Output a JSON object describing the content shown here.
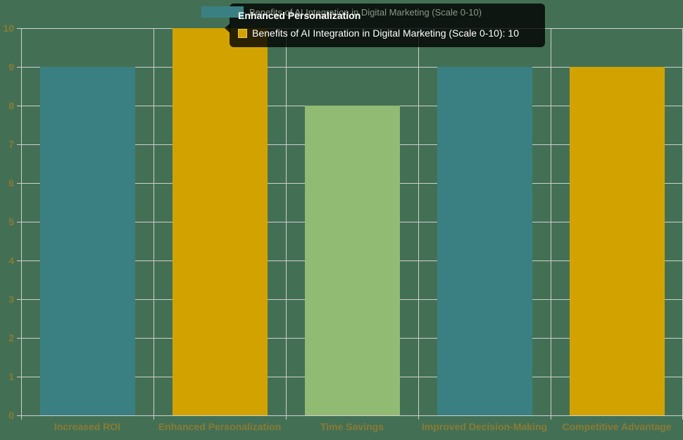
{
  "chart_data": {
    "type": "bar",
    "title": "",
    "categories": [
      "Increased ROI",
      "Enhanced Personalization",
      "Time Savings",
      "Improved Decision-Making",
      "Competitive Advantage"
    ],
    "values": [
      9,
      10,
      8,
      9,
      9
    ],
    "series_label": "Benefits of AI Integration in Digital Marketing (Scale 0-10)",
    "bar_colors": [
      "#3a8082",
      "#d2a300",
      "#91ba73",
      "#3a8082",
      "#d2a300"
    ],
    "ylim": [
      0,
      10
    ],
    "ytick_step": 1,
    "yticks": [
      0,
      1,
      2,
      3,
      4,
      5,
      6,
      7,
      8,
      9,
      10
    ],
    "grid": true,
    "legend_position": "top"
  },
  "legend": {
    "label": "Benefits of AI Integration in Digital Marketing (Scale 0-10)",
    "swatch_color": "#3a8082"
  },
  "tooltip": {
    "title": "Enhanced Personalization",
    "body": "Benefits of AI Integration in Digital Marketing (Scale 0-10): 10",
    "swatch_color": "#d2a300",
    "swatch_border_color": "#e7c75a"
  },
  "colors": {
    "background": "#437055",
    "gridline": "#cfcfcf",
    "tick_label": "#8a7a33",
    "legend_text": "#8d9789",
    "tooltip_background": "rgba(0,0,0,0.8)",
    "tooltip_text": "#ffffff"
  }
}
